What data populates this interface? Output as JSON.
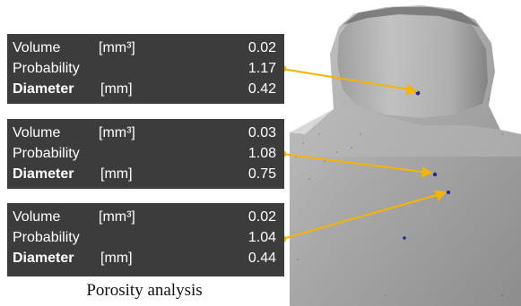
{
  "figure": {
    "caption": "Porosity analysis",
    "accent_color": "#f5b400",
    "pore_color": "#1f2a8a",
    "part_color": "#a8a8a8"
  },
  "pores": [
    {
      "volume_label": "Volume",
      "volume_unit": "[mm³]",
      "volume_value": "0.02",
      "probability_label": "Probability",
      "probability_value": "1.17",
      "diameter_label": "Diameter",
      "diameter_unit": "[mm]",
      "diameter_value": "0.42"
    },
    {
      "volume_label": "Volume",
      "volume_unit": "[mm³]",
      "volume_value": "0.03",
      "probability_label": "Probability",
      "probability_value": "1.08",
      "diameter_label": "Diameter",
      "diameter_unit": "[mm]",
      "diameter_value": "0.75"
    },
    {
      "volume_label": "Volume",
      "volume_unit": "[mm³]",
      "volume_value": "0.02",
      "probability_label": "Probability",
      "probability_value": "1.04",
      "diameter_label": "Diameter",
      "diameter_unit": "[mm]",
      "diameter_value": "0.44"
    }
  ]
}
